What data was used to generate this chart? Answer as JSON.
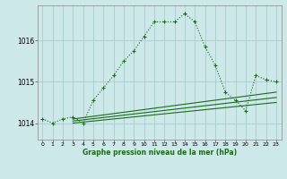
{
  "title": "Graphe pression niveau de la mer (hPa)",
  "bg_color": "#cce8e8",
  "grid_color": "#aacccc",
  "line_color": "#1a6b1a",
  "xlim": [
    -0.5,
    23.5
  ],
  "ylim": [
    1013.6,
    1016.85
  ],
  "xticks": [
    0,
    1,
    2,
    3,
    4,
    5,
    6,
    7,
    8,
    9,
    10,
    11,
    12,
    13,
    14,
    15,
    16,
    17,
    18,
    19,
    20,
    21,
    22,
    23
  ],
  "yticks": [
    1014,
    1015,
    1016
  ],
  "main_series": {
    "x": [
      0,
      1,
      2,
      3,
      4,
      5,
      6,
      7,
      8,
      9,
      10,
      11,
      12,
      13,
      14,
      15,
      16,
      17,
      18,
      19,
      20,
      21,
      22,
      23
    ],
    "y": [
      1014.1,
      1014.0,
      1014.1,
      1014.15,
      1014.0,
      1014.55,
      1014.85,
      1015.15,
      1015.5,
      1015.75,
      1016.1,
      1016.45,
      1016.45,
      1016.45,
      1016.65,
      1016.45,
      1015.85,
      1015.4,
      1014.75,
      1014.55,
      1014.3,
      1015.15,
      1015.05,
      1015.0
    ]
  },
  "straight_lines": [
    {
      "x": [
        3,
        23
      ],
      "y": [
        1014.1,
        1014.75
      ]
    },
    {
      "x": [
        3,
        23
      ],
      "y": [
        1014.05,
        1014.62
      ]
    },
    {
      "x": [
        3,
        23
      ],
      "y": [
        1014.0,
        1014.5
      ]
    }
  ]
}
